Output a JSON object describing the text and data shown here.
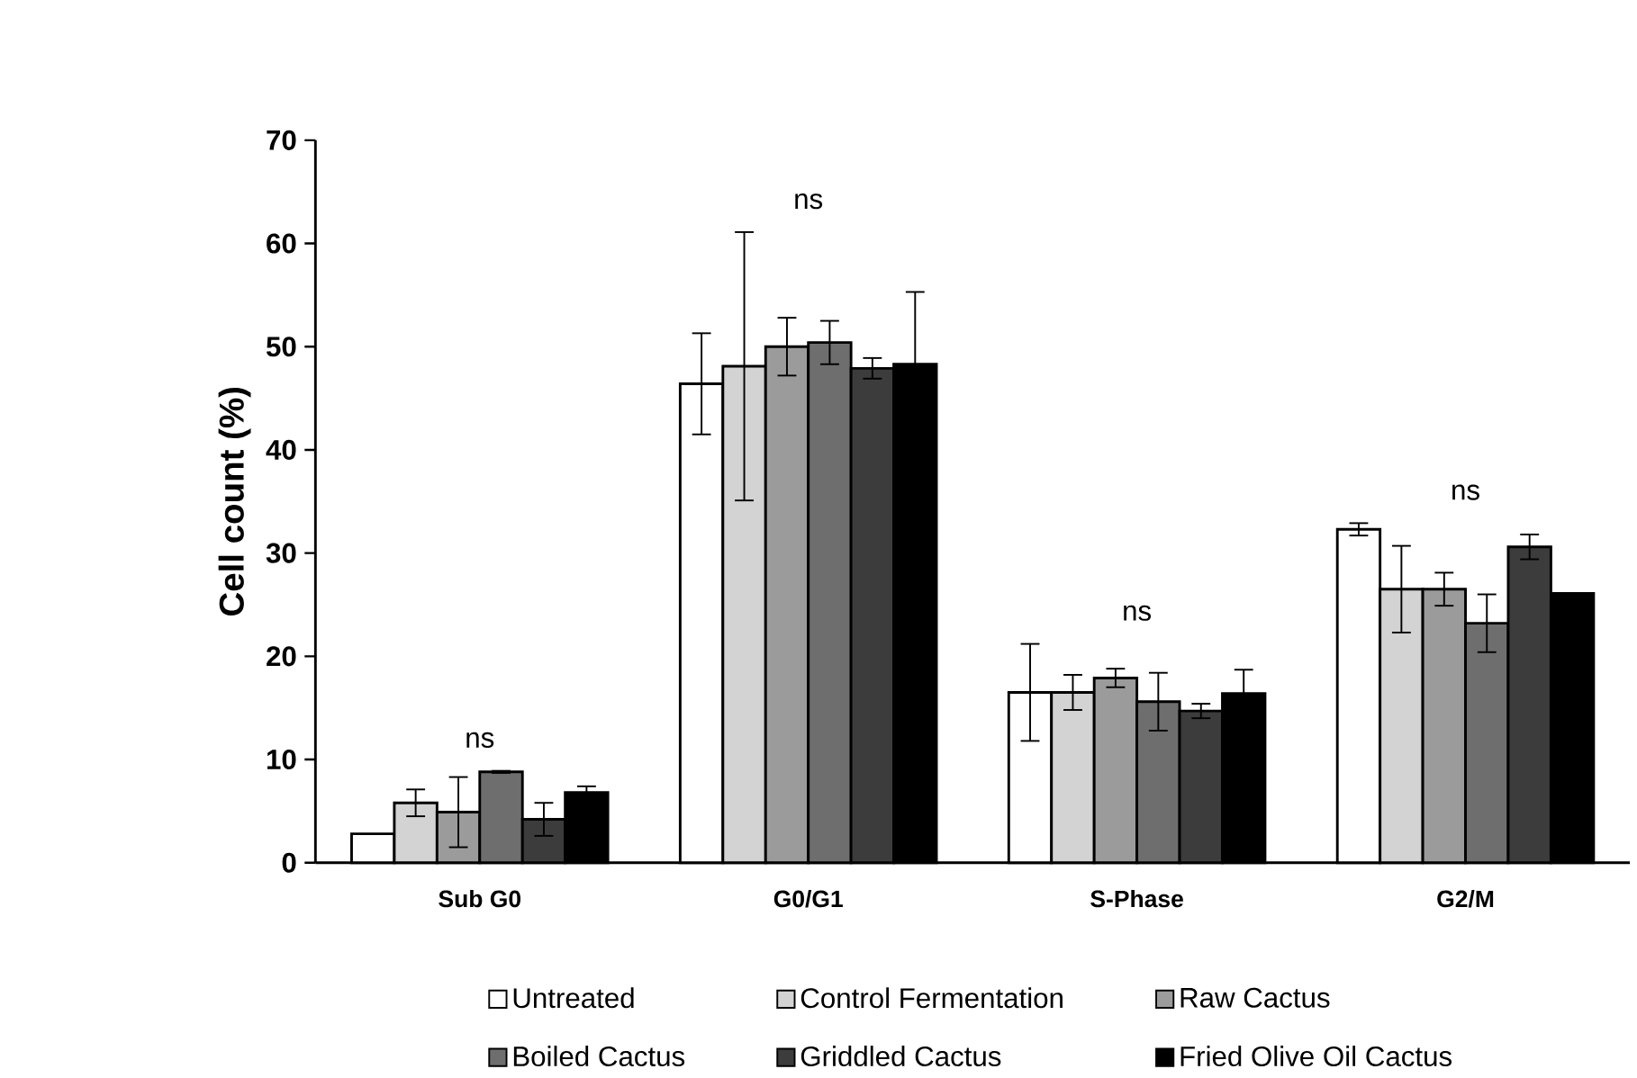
{
  "chart_data": {
    "type": "bar",
    "ylabel": "Cell count (%)",
    "categories": [
      "Sub G0",
      "G0/G1",
      "S-Phase",
      "G2/M"
    ],
    "series": [
      {
        "name": "Untreated",
        "color": "#ffffff",
        "values": [
          2.8,
          46.4,
          16.5,
          32.3
        ],
        "errors": [
          null,
          4.9,
          4.7,
          0.6
        ]
      },
      {
        "name": "Control Fermentation",
        "color": "#d3d3d3",
        "values": [
          5.8,
          48.1,
          16.5,
          26.5
        ],
        "errors": [
          1.3,
          13,
          1.7,
          4.2
        ]
      },
      {
        "name": "Raw Cactus",
        "color": "#9b9b9b",
        "values": [
          4.9,
          50.0,
          17.9,
          26.5
        ],
        "errors": [
          3.4,
          2.8,
          0.9,
          1.6
        ]
      },
      {
        "name": "Boiled Cactus",
        "color": "#6e6e6e",
        "values": [
          8.8,
          50.4,
          15.6,
          23.2
        ],
        "errors": [
          0.1,
          2.1,
          2.8,
          2.8
        ]
      },
      {
        "name": "Griddled Cactus",
        "color": "#3c3c3c",
        "values": [
          4.2,
          47.9,
          14.7,
          30.6
        ],
        "errors": [
          1.6,
          1.0,
          0.7,
          1.2
        ]
      },
      {
        "name": "Fried Olive Oil Cactus",
        "color": "#000000",
        "values": [
          6.8,
          48.3,
          16.4,
          26.1
        ],
        "errors": [
          0.6,
          7,
          2.3,
          null
        ]
      }
    ],
    "ylim": [
      0,
      70
    ],
    "yticks": [
      0,
      10,
      20,
      30,
      40,
      50,
      60,
      70
    ],
    "annotations": [
      "ns",
      "ns",
      "ns",
      "ns"
    ],
    "legend": "bottom"
  }
}
